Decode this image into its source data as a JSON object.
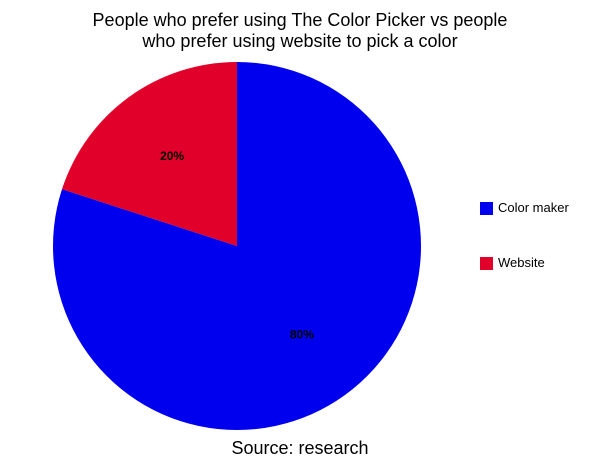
{
  "chart_data": {
    "type": "pie",
    "title": "People who prefer using The Color Picker vs people who prefer using website to pick a color",
    "title_lines": [
      "People who prefer using The Color Picker vs people",
      "who prefer using website to pick a color"
    ],
    "slices": [
      {
        "name": "Color maker",
        "value": 80,
        "label": "80%",
        "color": "#0000ee"
      },
      {
        "name": "Website",
        "value": 20,
        "label": "20%",
        "color": "#e0002a"
      }
    ],
    "legend_position": "right",
    "caption": "Source: research"
  }
}
